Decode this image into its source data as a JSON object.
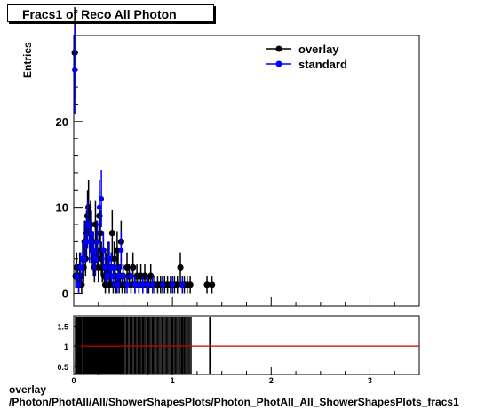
{
  "chart_data": [
    {
      "type": "scatter",
      "title": "Fracs1 of Reco All Photon",
      "ylabel": "Entries",
      "xlim": [
        0,
        3.5
      ],
      "ylim": [
        -1.5,
        30
      ],
      "yticks": [
        0,
        10,
        20
      ],
      "xticks": [
        0,
        1,
        2,
        3
      ],
      "legend_position": "top-right",
      "series": [
        {
          "name": "overlay",
          "color": "#000000",
          "points": [
            [
              0.01,
              28
            ],
            [
              0.02,
              2
            ],
            [
              0.03,
              3
            ],
            [
              0.04,
              2
            ],
            [
              0.05,
              1
            ],
            [
              0.06,
              3
            ],
            [
              0.07,
              2
            ],
            [
              0.08,
              1
            ],
            [
              0.09,
              4
            ],
            [
              0.1,
              3
            ],
            [
              0.11,
              6
            ],
            [
              0.12,
              4
            ],
            [
              0.13,
              7
            ],
            [
              0.14,
              9
            ],
            [
              0.15,
              10
            ],
            [
              0.16,
              7
            ],
            [
              0.17,
              8
            ],
            [
              0.18,
              6
            ],
            [
              0.19,
              5
            ],
            [
              0.2,
              4
            ],
            [
              0.21,
              3
            ],
            [
              0.22,
              8
            ],
            [
              0.23,
              6
            ],
            [
              0.24,
              5
            ],
            [
              0.25,
              3
            ],
            [
              0.26,
              9
            ],
            [
              0.27,
              7
            ],
            [
              0.28,
              4
            ],
            [
              0.29,
              3
            ],
            [
              0.3,
              5
            ],
            [
              0.31,
              2
            ],
            [
              0.32,
              1
            ],
            [
              0.33,
              3
            ],
            [
              0.34,
              2
            ],
            [
              0.35,
              4
            ],
            [
              0.36,
              1
            ],
            [
              0.37,
              2
            ],
            [
              0.38,
              3
            ],
            [
              0.39,
              7
            ],
            [
              0.4,
              1
            ],
            [
              0.41,
              4
            ],
            [
              0.42,
              2
            ],
            [
              0.43,
              1
            ],
            [
              0.44,
              5
            ],
            [
              0.45,
              3
            ],
            [
              0.46,
              1
            ],
            [
              0.47,
              2
            ],
            [
              0.48,
              6
            ],
            [
              0.49,
              1
            ],
            [
              0.5,
              2
            ],
            [
              0.52,
              1
            ],
            [
              0.54,
              3
            ],
            [
              0.56,
              2
            ],
            [
              0.58,
              1
            ],
            [
              0.6,
              3
            ],
            [
              0.62,
              1
            ],
            [
              0.64,
              2
            ],
            [
              0.66,
              1
            ],
            [
              0.68,
              2
            ],
            [
              0.7,
              1
            ],
            [
              0.72,
              2
            ],
            [
              0.74,
              1
            ],
            [
              0.76,
              1
            ],
            [
              0.78,
              2
            ],
            [
              0.8,
              1
            ],
            [
              0.82,
              1
            ],
            [
              0.85,
              1
            ],
            [
              0.88,
              1
            ],
            [
              0.9,
              1
            ],
            [
              0.92,
              1
            ],
            [
              0.95,
              1
            ],
            [
              0.98,
              1
            ],
            [
              1.0,
              1
            ],
            [
              1.02,
              1
            ],
            [
              1.05,
              1
            ],
            [
              1.08,
              3
            ],
            [
              1.1,
              1
            ],
            [
              1.12,
              1
            ],
            [
              1.15,
              1
            ],
            [
              1.18,
              1
            ],
            [
              1.35,
              1
            ],
            [
              1.4,
              1
            ]
          ]
        },
        {
          "name": "standard",
          "color": "#0000ff",
          "points": [
            [
              0.01,
              26
            ],
            [
              0.03,
              2
            ],
            [
              0.05,
              1
            ],
            [
              0.07,
              3
            ],
            [
              0.1,
              4
            ],
            [
              0.12,
              6
            ],
            [
              0.14,
              8
            ],
            [
              0.16,
              6
            ],
            [
              0.18,
              7
            ],
            [
              0.2,
              5
            ],
            [
              0.22,
              4
            ],
            [
              0.24,
              6
            ],
            [
              0.26,
              10
            ],
            [
              0.28,
              11
            ],
            [
              0.3,
              5
            ],
            [
              0.32,
              3
            ],
            [
              0.34,
              2
            ],
            [
              0.36,
              4
            ],
            [
              0.38,
              3
            ],
            [
              0.4,
              2
            ],
            [
              0.42,
              3
            ],
            [
              0.44,
              1
            ],
            [
              0.46,
              2
            ],
            [
              0.48,
              5
            ],
            [
              0.5,
              2
            ],
            [
              0.54,
              1
            ],
            [
              0.58,
              2
            ],
            [
              0.62,
              1
            ],
            [
              0.66,
              1
            ],
            [
              0.7,
              1
            ],
            [
              0.75,
              1
            ],
            [
              0.8,
              1
            ],
            [
              0.9,
              1
            ],
            [
              1.0,
              1
            ],
            [
              1.1,
              1
            ]
          ]
        }
      ]
    },
    {
      "type": "scatter",
      "title": "",
      "xlim": [
        0,
        3.5
      ],
      "ylim": [
        0.3,
        1.75
      ],
      "yticks": [
        0.5,
        1,
        1.5
      ],
      "xticks": [
        0,
        1,
        2,
        3
      ],
      "reference_line": 1,
      "reference_color": "#cc0000",
      "ratio_x": [
        0.02,
        0.03,
        0.05,
        0.07,
        0.1,
        0.12,
        0.14,
        0.16,
        0.18,
        0.2,
        0.22,
        0.24,
        0.26,
        0.28,
        0.3,
        0.32,
        0.34,
        0.36,
        0.38,
        0.4,
        0.42,
        0.44,
        0.46,
        0.48,
        0.5,
        0.54,
        0.58,
        0.62,
        0.66,
        0.7,
        0.75,
        0.8,
        0.9,
        1.0,
        1.1,
        1.38
      ]
    }
  ],
  "footer": {
    "line1": "overlay",
    "line2": "/Photon/PhotAll/All/ShowerShapesPlots/Photon_PhotAll_All_ShowerShapesPlots_fracs1"
  },
  "overflow_x_label": "⁻"
}
